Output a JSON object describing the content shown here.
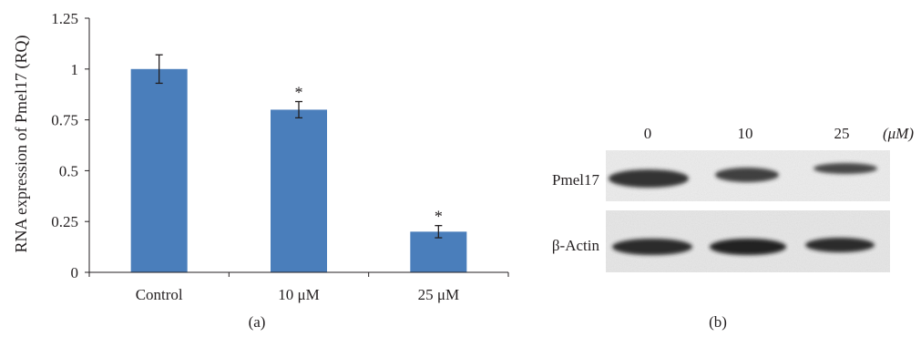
{
  "chart_data": {
    "type": "bar",
    "categories": [
      "Control",
      "10 μM",
      "25 μM"
    ],
    "values": [
      1.0,
      0.8,
      0.2
    ],
    "errors": [
      0.07,
      0.04,
      0.03
    ],
    "annotations": [
      "",
      "*",
      "*"
    ],
    "ylabel": "RNA expression of Pmel17 (RQ)",
    "xlabel": "",
    "ylim": [
      0,
      1.25
    ],
    "yticks": [
      0,
      0.25,
      0.5,
      0.75,
      1,
      1.25
    ],
    "ytick_labels": [
      "0",
      "0.25",
      "0.5",
      "0.75",
      "1",
      "1.25"
    ],
    "grid": false,
    "bar_color": "#4a7ebb",
    "panel_label": "(a)"
  },
  "blot": {
    "panel_label": "(b)",
    "lanes": [
      "0",
      "10",
      "25"
    ],
    "unit": "(μM)",
    "rows": [
      "Pmel17",
      "β-Actin"
    ]
  }
}
